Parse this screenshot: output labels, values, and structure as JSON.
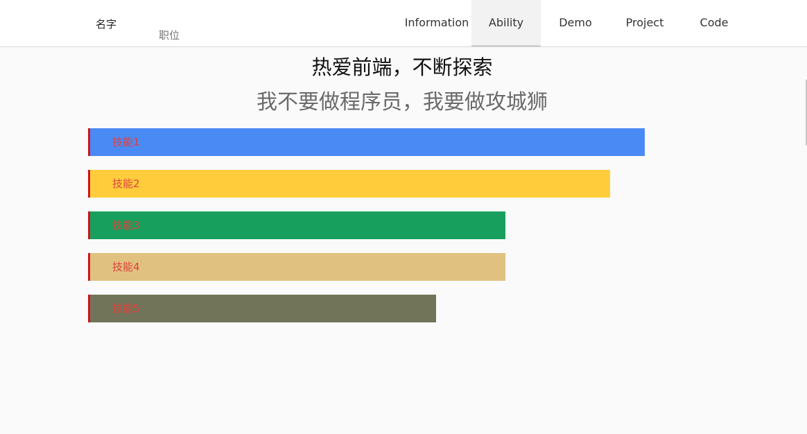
{
  "header": {
    "name": "名字",
    "title": "职位",
    "nav": [
      {
        "label": "Information",
        "active": false
      },
      {
        "label": "Ability",
        "active": true
      },
      {
        "label": "Demo",
        "active": false
      },
      {
        "label": "Project",
        "active": false
      },
      {
        "label": "Code",
        "active": false
      }
    ]
  },
  "main": {
    "headline": "热爱前端，不断探索",
    "subheadline": "我不要做程序员，我要做攻城狮",
    "skills": [
      {
        "label": "技能1",
        "level": 1.0,
        "color": "#4a8af4"
      },
      {
        "label": "技能2",
        "level": 0.9375,
        "color": "#ffcd3c"
      },
      {
        "label": "技能3",
        "level": 0.75,
        "color": "#17a05d"
      },
      {
        "label": "技能4",
        "level": 0.75,
        "color": "#e1c180"
      },
      {
        "label": "技能5",
        "level": 0.625,
        "color": "#727459"
      }
    ]
  }
}
